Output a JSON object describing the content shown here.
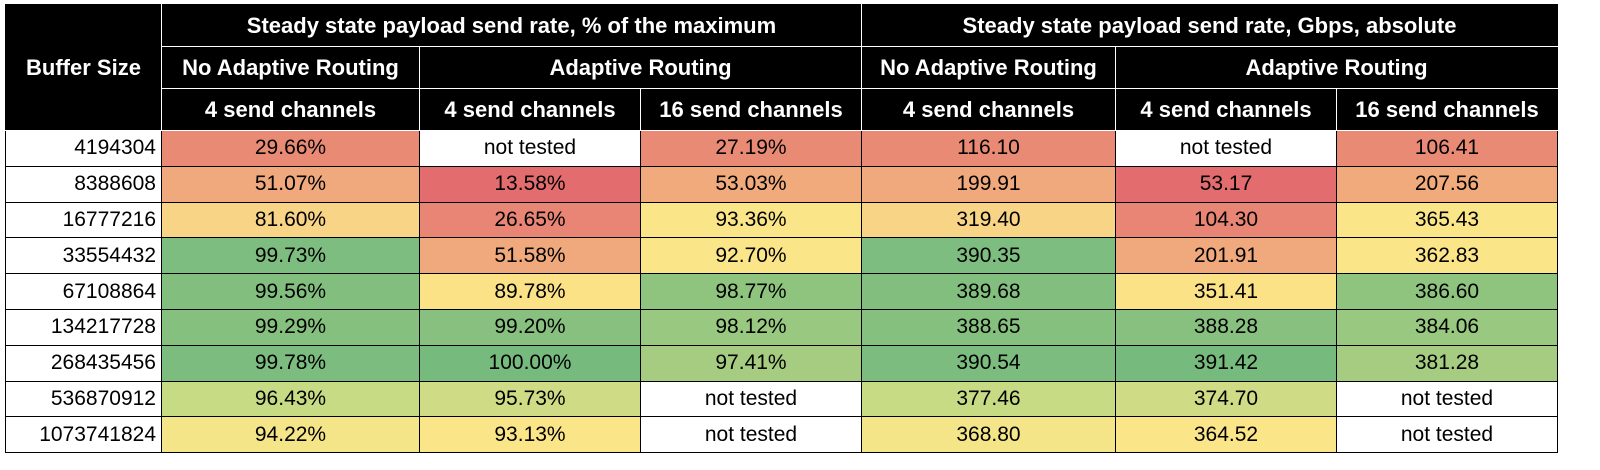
{
  "header": {
    "buffer_size": "Buffer Size",
    "group_pct": "Steady state payload send rate, % of the maximum",
    "group_abs": "Steady state payload send rate, Gbps, absolute",
    "no_adaptive": "No Adaptive Routing",
    "adaptive": "Adaptive Routing",
    "ch4": "4 send channels",
    "ch16": "16 send channels"
  },
  "rows": [
    {
      "buffer": "4194304",
      "cells": [
        {
          "text": "29.66%",
          "color": "#e98a75"
        },
        {
          "text": "not tested",
          "color": "#ffffff"
        },
        {
          "text": "27.19%",
          "color": "#e98a75"
        },
        {
          "text": "116.10",
          "color": "#e98a75"
        },
        {
          "text": "not tested",
          "color": "#ffffff"
        },
        {
          "text": "106.41",
          "color": "#e98a75"
        }
      ]
    },
    {
      "buffer": "8388608",
      "cells": [
        {
          "text": "51.07%",
          "color": "#f0a97c"
        },
        {
          "text": "13.58%",
          "color": "#e36c6e"
        },
        {
          "text": "53.03%",
          "color": "#f0aa7c"
        },
        {
          "text": "199.91",
          "color": "#f0a97c"
        },
        {
          "text": "53.17",
          "color": "#e36c6e"
        },
        {
          "text": "207.56",
          "color": "#f0aa7c"
        }
      ]
    },
    {
      "buffer": "16777216",
      "cells": [
        {
          "text": "81.60%",
          "color": "#f8d487"
        },
        {
          "text": "26.65%",
          "color": "#e88574"
        },
        {
          "text": "93.36%",
          "color": "#fbe589"
        },
        {
          "text": "319.40",
          "color": "#f8d487"
        },
        {
          "text": "104.30",
          "color": "#e88574"
        },
        {
          "text": "365.43",
          "color": "#fbe589"
        }
      ]
    },
    {
      "buffer": "33554432",
      "cells": [
        {
          "text": "99.73%",
          "color": "#7dbd7f"
        },
        {
          "text": "51.58%",
          "color": "#f0a97c"
        },
        {
          "text": "92.70%",
          "color": "#fbe589"
        },
        {
          "text": "390.35",
          "color": "#7dbd7f"
        },
        {
          "text": "201.91",
          "color": "#f0a97c"
        },
        {
          "text": "362.83",
          "color": "#fbe589"
        }
      ]
    },
    {
      "buffer": "67108864",
      "cells": [
        {
          "text": "99.56%",
          "color": "#82bf7f"
        },
        {
          "text": "89.78%",
          "color": "#fbe287"
        },
        {
          "text": "98.77%",
          "color": "#8fc47f"
        },
        {
          "text": "389.68",
          "color": "#82bf7f"
        },
        {
          "text": "351.41",
          "color": "#fbe287"
        },
        {
          "text": "386.60",
          "color": "#8fc47f"
        }
      ]
    },
    {
      "buffer": "134217728",
      "cells": [
        {
          "text": "99.29%",
          "color": "#86c07f"
        },
        {
          "text": "99.20%",
          "color": "#88c17f"
        },
        {
          "text": "98.12%",
          "color": "#99c880"
        },
        {
          "text": "388.65",
          "color": "#86c07f"
        },
        {
          "text": "388.28",
          "color": "#88c17f"
        },
        {
          "text": "384.06",
          "color": "#99c880"
        }
      ]
    },
    {
      "buffer": "268435456",
      "cells": [
        {
          "text": "99.78%",
          "color": "#7cbc7f"
        },
        {
          "text": "100.00%",
          "color": "#77ba7e"
        },
        {
          "text": "97.41%",
          "color": "#a5cc81"
        },
        {
          "text": "390.54",
          "color": "#7cbc7f"
        },
        {
          "text": "391.42",
          "color": "#77ba7e"
        },
        {
          "text": "381.28",
          "color": "#a5cc81"
        }
      ]
    },
    {
      "buffer": "536870912",
      "cells": [
        {
          "text": "96.43%",
          "color": "#c7da84"
        },
        {
          "text": "95.73%",
          "color": "#cfdc85"
        },
        {
          "text": "not tested",
          "color": "#ffffff"
        },
        {
          "text": "377.46",
          "color": "#c7da84"
        },
        {
          "text": "374.70",
          "color": "#cfdc85"
        },
        {
          "text": "not tested",
          "color": "#ffffff"
        }
      ]
    },
    {
      "buffer": "1073741824",
      "cells": [
        {
          "text": "94.22%",
          "color": "#f3e588"
        },
        {
          "text": "93.13%",
          "color": "#fbe589"
        },
        {
          "text": "not tested",
          "color": "#ffffff"
        },
        {
          "text": "368.80",
          "color": "#f3e588"
        },
        {
          "text": "364.52",
          "color": "#fbe589"
        },
        {
          "text": "not tested",
          "color": "#ffffff"
        }
      ]
    }
  ]
}
